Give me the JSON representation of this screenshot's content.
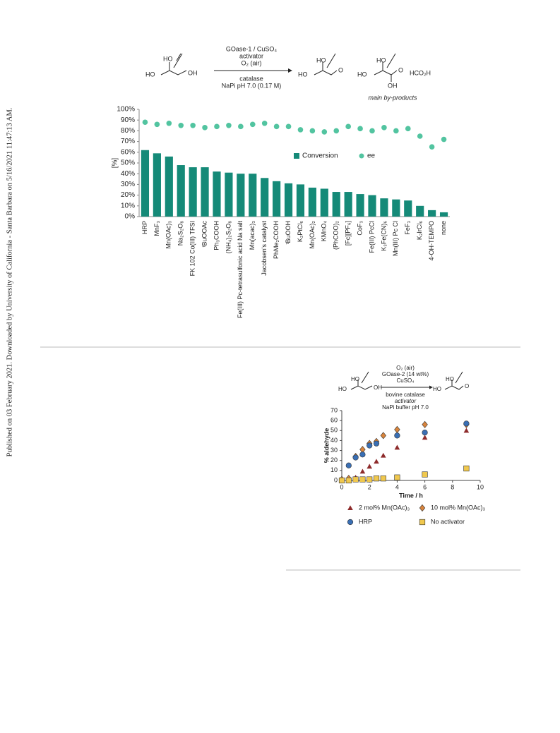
{
  "side_note": "Published on 03 February 2021. Downloaded by University of California - Santa Barbara on 5/16/2021 11:47:13 AM.",
  "scheme1": {
    "reagents_above": [
      "GOase-1 / CuSO₄",
      "activator",
      "O₂ (air)"
    ],
    "reagents_below": [
      "catalase",
      "NaPi pH 7.0 (0.17 M)"
    ],
    "labels": [
      "HO",
      "HO",
      "OH",
      "HO",
      "HO",
      "O",
      "HO",
      "HO",
      "O",
      "OH",
      "HCO₂H"
    ],
    "byproducts": "main by-products"
  },
  "scheme2": {
    "reagents_above": [
      "O₂ (air)",
      "GOase-2 (14 wt%)",
      "CuSO₄"
    ],
    "reagents_below": [
      "bovine catalase",
      "activator",
      "NaPi buffer pH 7.0"
    ],
    "labels": [
      "HO",
      "HO",
      "OH",
      "HO",
      "HO",
      "O"
    ]
  },
  "chart_data": [
    {
      "type": "bar",
      "ylabel": "[%]",
      "categories": [
        "HRP",
        "MnF₃",
        "Mn(OAc)₃",
        "Na₂S₂O₈",
        "FK 102 Co(III) TFSI",
        "ᵗBuOOAc",
        "Ph₃COOH",
        "(NH₄)₂S₂O₈",
        "Fe(III) Pc-tetrasulfonic acid Na salt",
        "Mn(acac)₃",
        "Jacobsen's catalyst",
        "PhMe₂COOH",
        "ᵗBuOOH",
        "K₂PtCl₆",
        "Mn(OAc)₂",
        "KMnO₄",
        "(PhCOO)₂",
        "[Fc][PF₆]",
        "CoF₃",
        "Fe(III) PcCl",
        "K₃Fe(CN)₆",
        "Mn(III) Pc Cl",
        "FeF₃",
        "K₂IrCl₆",
        "4-OH-TEMPO",
        "none"
      ],
      "series": [
        {
          "name": "Conversion",
          "color": "#158a78",
          "mark": "bar",
          "values": [
            62,
            59,
            56,
            48,
            46,
            46,
            42,
            41,
            40,
            40,
            36,
            33,
            31,
            30,
            27,
            26,
            23,
            23,
            21,
            20,
            17,
            16,
            15,
            10,
            6,
            4
          ]
        },
        {
          "name": "ee",
          "color": "#52c4a0",
          "mark": "point",
          "values": [
            88,
            86,
            87,
            85,
            85,
            83,
            84,
            85,
            84,
            86,
            87,
            84,
            84,
            81,
            80,
            79,
            80,
            84,
            82,
            80,
            83,
            80,
            82,
            75,
            65,
            72
          ]
        }
      ],
      "ylim": [
        0,
        100
      ],
      "yticks": [
        {
          "value": 0,
          "label": "0%"
        },
        {
          "value": 10,
          "label": "10%"
        },
        {
          "value": 20,
          "label": "20%"
        },
        {
          "value": 30,
          "label": "30%"
        },
        {
          "value": 40,
          "label": "40%"
        },
        {
          "value": 50,
          "label": "50%"
        },
        {
          "value": 60,
          "label": "60%"
        },
        {
          "value": 70,
          "label": "70%"
        },
        {
          "value": 80,
          "label": "80%"
        },
        {
          "value": 90,
          "label": "90%"
        },
        {
          "value": 100,
          "label": "100%"
        }
      ]
    },
    {
      "type": "scatter",
      "xlabel": "Time / h",
      "ylabel": "% aldehyde",
      "xlim": [
        0,
        10
      ],
      "xticks": [
        0,
        2,
        4,
        6,
        8,
        10
      ],
      "ylim": [
        0,
        70
      ],
      "yticks": [
        0,
        10,
        20,
        30,
        40,
        50,
        60,
        70
      ],
      "series": [
        {
          "name": "2 mol% Mn(OAc)₃",
          "color": "#8e2b2b",
          "marker": "triangle",
          "x": [
            0,
            0.5,
            1,
            1.5,
            2,
            2.5,
            3,
            4,
            6,
            9
          ],
          "values": [
            0,
            1,
            3,
            9,
            14,
            19,
            25,
            33,
            43,
            50
          ]
        },
        {
          "name": "10 mol% Mn(OAc)₃",
          "color": "#d8843c",
          "marker": "diamond",
          "x": [
            0,
            0.5,
            1,
            1.5,
            2,
            2.5,
            3,
            4,
            6,
            9
          ],
          "values": [
            1,
            2,
            24,
            31,
            37,
            39,
            45,
            51,
            56,
            56
          ]
        },
        {
          "name": "HRP",
          "color": "#3a6fb4",
          "marker": "circle",
          "x": [
            0,
            0.5,
            1,
            1.5,
            2,
            2.5,
            4,
            6,
            9
          ],
          "values": [
            0,
            15,
            23,
            26,
            35,
            37,
            45,
            48,
            57
          ]
        },
        {
          "name": "No activator",
          "color": "#f0c84e",
          "marker": "square",
          "x": [
            0,
            0.5,
            1,
            1.5,
            2,
            2.5,
            3,
            4,
            6,
            9
          ],
          "values": [
            0,
            0,
            1,
            1,
            1,
            2,
            2,
            3,
            6,
            12
          ]
        }
      ]
    }
  ]
}
